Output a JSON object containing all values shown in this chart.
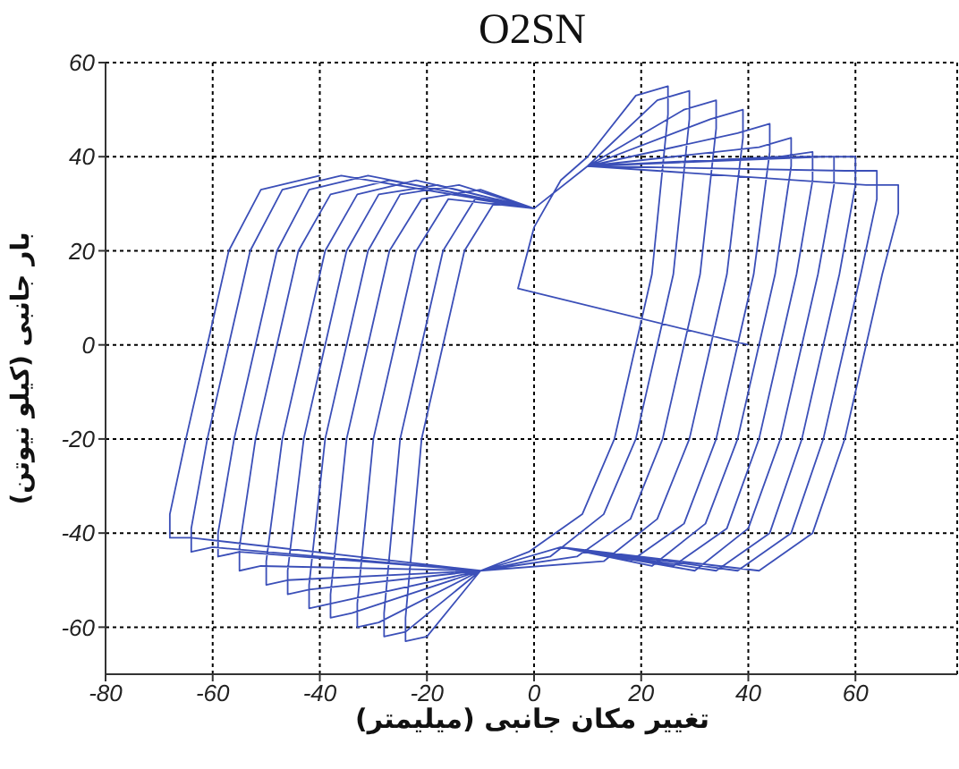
{
  "chart_data": {
    "type": "line",
    "title": "O2SN",
    "xlabel": "تغییر مکان جانبی (میلیمتر)",
    "ylabel": "بار جانبی (کیلو نیوتن)",
    "xlim": [
      -80,
      79
    ],
    "xticks": [
      -80,
      -60,
      -40,
      -20,
      0,
      20,
      40,
      60
    ],
    "ylim": [
      -70,
      60
    ],
    "yticks": [
      -60,
      -40,
      -20,
      0,
      20,
      40,
      60
    ],
    "grid": true,
    "series": [
      {
        "color": "#3b4fb8",
        "x": [
          40,
          -3,
          0,
          5,
          10,
          19,
          25,
          25,
          22,
          19,
          15,
          9,
          -1,
          -10,
          -20,
          -24,
          -24,
          -21,
          -17,
          -13,
          -7,
          0,
          10,
          23,
          29,
          29,
          26,
          23,
          19,
          13,
          3,
          -10,
          -24,
          -28,
          -28,
          -25,
          -21,
          -17,
          -11,
          0,
          10,
          28,
          34,
          34,
          31,
          28,
          24,
          18,
          8,
          -10,
          -29,
          -33,
          -33,
          -30,
          -26,
          -22,
          -16,
          0,
          10,
          33,
          39,
          39,
          36,
          33,
          29,
          23,
          13,
          -10,
          -34,
          -38,
          -38,
          -35,
          -31,
          -27,
          -21,
          -10,
          0,
          10,
          38,
          44,
          44,
          41,
          38,
          34,
          28,
          18,
          5,
          -10,
          -38,
          -42,
          -42,
          -39,
          -35,
          -31,
          -25,
          -14,
          0,
          10,
          42,
          48,
          48,
          45,
          42,
          38,
          32,
          22,
          5,
          -10,
          -42,
          -46,
          -46,
          -43,
          -39,
          -35,
          -29,
          -18,
          0,
          10,
          46,
          52,
          52,
          49,
          46,
          42,
          36,
          26,
          5,
          -10,
          -46,
          -50,
          -50,
          -47,
          -43,
          -39,
          -33,
          -22,
          0,
          10,
          50,
          56,
          56,
          53,
          50,
          46,
          40,
          30,
          5,
          -10,
          -51,
          -55,
          -55,
          -52,
          -48,
          -44,
          -38,
          -27,
          0,
          10,
          54,
          60,
          60,
          57,
          54,
          50,
          44,
          34,
          5,
          -10,
          -55,
          -59,
          -59,
          -56,
          -52,
          -48,
          -42,
          -31,
          0,
          10,
          58,
          64,
          64,
          61,
          58,
          54,
          48,
          38,
          5,
          -10,
          -60,
          -64,
          -64,
          -61,
          -57,
          -53,
          -47,
          -36,
          0,
          10,
          62,
          68,
          68,
          65,
          62,
          58,
          52,
          42,
          5,
          -10,
          -64,
          -68,
          -68,
          -65,
          -61,
          -57,
          -51,
          -40
        ],
        "values": [
          0,
          12,
          25,
          35,
          40,
          53,
          55,
          49,
          15,
          0,
          -20,
          -36,
          -44,
          -48,
          -62,
          -63,
          -58,
          -20,
          0,
          20,
          31,
          29,
          38,
          52,
          54,
          48,
          15,
          0,
          -20,
          -36,
          -45,
          -48,
          -61,
          -62,
          -57,
          -20,
          0,
          20,
          31,
          29,
          38,
          50,
          52,
          46,
          15,
          0,
          -20,
          -37,
          -45,
          -48,
          -59,
          -60,
          -55,
          -20,
          0,
          20,
          31,
          29,
          38,
          48,
          50,
          44,
          15,
          0,
          -20,
          -37,
          -46,
          -48,
          -57,
          -58,
          -53,
          -20,
          0,
          20,
          31,
          33,
          29,
          38,
          45,
          47,
          41,
          15,
          0,
          -20,
          -38,
          -46,
          -43,
          -48,
          -55,
          -56,
          -51,
          -20,
          0,
          20,
          32,
          34,
          29,
          38,
          42,
          44,
          38,
          15,
          0,
          -20,
          -38,
          -47,
          -43,
          -48,
          -52,
          -53,
          -48,
          -20,
          0,
          20,
          32,
          34,
          29,
          38,
          40,
          41,
          35,
          15,
          0,
          -20,
          -39,
          -47,
          -43,
          -48,
          -50,
          -51,
          -46,
          -20,
          0,
          20,
          32,
          35,
          29,
          38,
          40,
          40,
          34,
          15,
          0,
          -20,
          -39,
          -48,
          -43,
          -48,
          -47,
          -48,
          -43,
          -20,
          0,
          20,
          32,
          35,
          29,
          38,
          40,
          40,
          34,
          15,
          0,
          -20,
          -40,
          -48,
          -43,
          -48,
          -44,
          -45,
          -40,
          -20,
          0,
          20,
          33,
          36,
          29,
          38,
          37,
          37,
          31,
          15,
          0,
          -20,
          -40,
          -48,
          -43,
          -48,
          -43,
          -44,
          -39,
          -20,
          0,
          20,
          33,
          36,
          29,
          38,
          34,
          34,
          28,
          15,
          0,
          -20,
          -40,
          -48,
          -43,
          -48,
          -41,
          -41,
          -36,
          -20,
          0,
          20,
          33,
          36
        ]
      }
    ]
  }
}
